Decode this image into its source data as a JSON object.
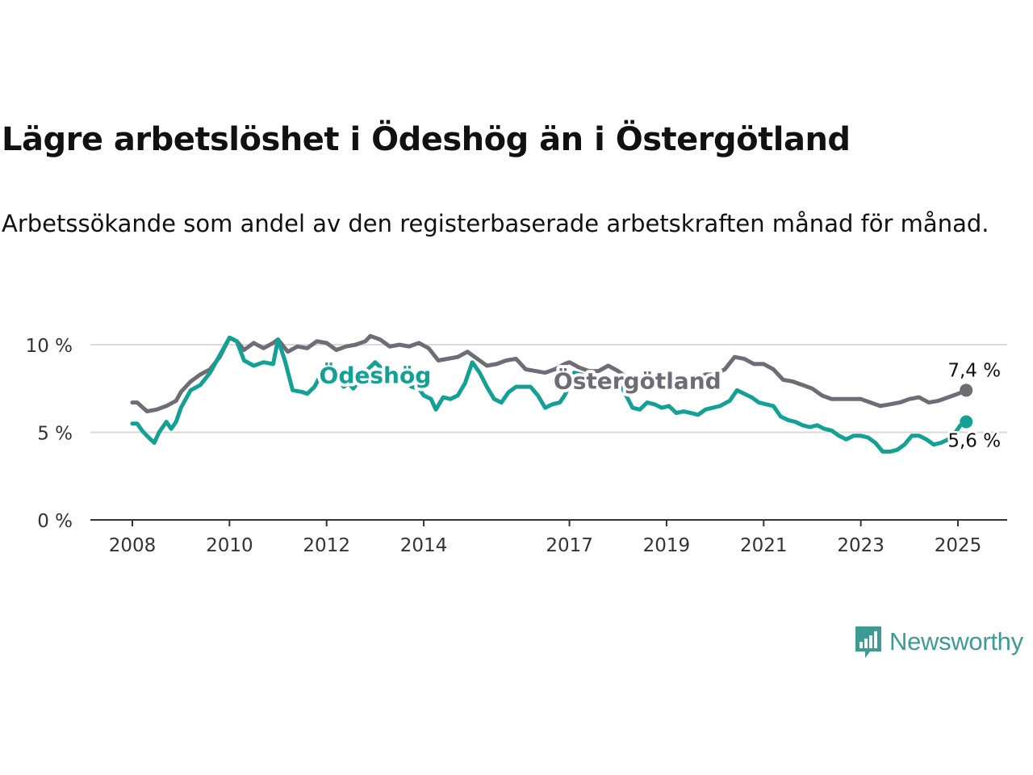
{
  "title": "Lägre arbetslöshet i Ödeshög än i Östergötland",
  "subtitle": "Arbetssökande som andel av den registerbaserade arbetskraften månad för månad.",
  "brand": {
    "name": "Newsworthy",
    "icon": "newsworthy-chart-icon",
    "color": "#3d9b93"
  },
  "chart_data": {
    "type": "line",
    "ylim": [
      0,
      10.5
    ],
    "yticks": [
      {
        "value": 0,
        "label": "0 %"
      },
      {
        "value": 5,
        "label": "5 %"
      },
      {
        "value": 10,
        "label": "10 %"
      }
    ],
    "xlim": [
      2008,
      2026
    ],
    "xticks": [
      {
        "value": 2008,
        "label": "2008"
      },
      {
        "value": 2010,
        "label": "2010"
      },
      {
        "value": 2012,
        "label": "2012"
      },
      {
        "value": 2014,
        "label": "2014"
      },
      {
        "value": 2017,
        "label": "2017"
      },
      {
        "value": 2019,
        "label": "2019"
      },
      {
        "value": 2021,
        "label": "2021"
      },
      {
        "value": 2023,
        "label": "2023"
      },
      {
        "value": 2025,
        "label": "2025"
      }
    ],
    "grid": true,
    "series": [
      {
        "name": "Östergötland",
        "color": "#6e6c74",
        "end_label": "7,4 %",
        "points": [
          [
            2008.0,
            6.7
          ],
          [
            2008.1,
            6.7
          ],
          [
            2008.3,
            6.2
          ],
          [
            2008.5,
            6.3
          ],
          [
            2008.7,
            6.5
          ],
          [
            2008.9,
            6.8
          ],
          [
            2009.0,
            7.3
          ],
          [
            2009.2,
            7.9
          ],
          [
            2009.4,
            8.3
          ],
          [
            2009.6,
            8.6
          ],
          [
            2009.8,
            9.3
          ],
          [
            2010.0,
            10.4
          ],
          [
            2010.15,
            10.2
          ],
          [
            2010.3,
            9.7
          ],
          [
            2010.5,
            10.1
          ],
          [
            2010.7,
            9.8
          ],
          [
            2010.9,
            10.1
          ],
          [
            2011.0,
            10.3
          ],
          [
            2011.2,
            9.6
          ],
          [
            2011.4,
            9.9
          ],
          [
            2011.6,
            9.8
          ],
          [
            2011.8,
            10.2
          ],
          [
            2012.0,
            10.1
          ],
          [
            2012.2,
            9.7
          ],
          [
            2012.4,
            9.9
          ],
          [
            2012.6,
            10.0
          ],
          [
            2012.8,
            10.2
          ],
          [
            2012.9,
            10.5
          ],
          [
            2013.1,
            10.3
          ],
          [
            2013.3,
            9.9
          ],
          [
            2013.5,
            10.0
          ],
          [
            2013.7,
            9.9
          ],
          [
            2013.9,
            10.1
          ],
          [
            2014.1,
            9.8
          ],
          [
            2014.3,
            9.1
          ],
          [
            2014.5,
            9.2
          ],
          [
            2014.7,
            9.3
          ],
          [
            2014.9,
            9.6
          ],
          [
            2015.1,
            9.2
          ],
          [
            2015.3,
            8.8
          ],
          [
            2015.5,
            8.9
          ],
          [
            2015.7,
            9.1
          ],
          [
            2015.9,
            9.2
          ],
          [
            2016.1,
            8.6
          ],
          [
            2016.3,
            8.5
          ],
          [
            2016.5,
            8.4
          ],
          [
            2016.7,
            8.6
          ],
          [
            2016.9,
            8.9
          ],
          [
            2017.0,
            9.0
          ],
          [
            2017.2,
            8.7
          ],
          [
            2017.4,
            8.5
          ],
          [
            2017.6,
            8.5
          ],
          [
            2017.8,
            8.8
          ],
          [
            2018.0,
            8.5
          ],
          [
            2018.2,
            8.1
          ],
          [
            2018.4,
            8.0
          ],
          [
            2018.6,
            7.9
          ],
          [
            2018.8,
            8.0
          ],
          [
            2019.0,
            8.2
          ],
          [
            2019.2,
            8.2
          ],
          [
            2019.4,
            8.0
          ],
          [
            2019.6,
            8.0
          ],
          [
            2019.8,
            8.3
          ],
          [
            2020.0,
            8.3
          ],
          [
            2020.2,
            8.6
          ],
          [
            2020.4,
            9.3
          ],
          [
            2020.6,
            9.2
          ],
          [
            2020.8,
            8.9
          ],
          [
            2021.0,
            8.9
          ],
          [
            2021.2,
            8.6
          ],
          [
            2021.4,
            8.0
          ],
          [
            2021.6,
            7.9
          ],
          [
            2021.8,
            7.7
          ],
          [
            2022.0,
            7.5
          ],
          [
            2022.2,
            7.1
          ],
          [
            2022.4,
            6.9
          ],
          [
            2022.6,
            6.9
          ],
          [
            2022.8,
            6.9
          ],
          [
            2023.0,
            6.9
          ],
          [
            2023.2,
            6.7
          ],
          [
            2023.4,
            6.5
          ],
          [
            2023.6,
            6.6
          ],
          [
            2023.8,
            6.7
          ],
          [
            2024.0,
            6.9
          ],
          [
            2024.2,
            7.0
          ],
          [
            2024.4,
            6.7
          ],
          [
            2024.6,
            6.8
          ],
          [
            2024.8,
            7.0
          ],
          [
            2025.0,
            7.2
          ],
          [
            2025.17,
            7.4
          ]
        ]
      },
      {
        "name": "Ödeshög",
        "color": "#13a195",
        "end_label": "5,6 %",
        "points": [
          [
            2008.0,
            5.5
          ],
          [
            2008.1,
            5.5
          ],
          [
            2008.2,
            5.1
          ],
          [
            2008.3,
            4.8
          ],
          [
            2008.45,
            4.4
          ],
          [
            2008.55,
            5.0
          ],
          [
            2008.7,
            5.6
          ],
          [
            2008.8,
            5.2
          ],
          [
            2008.9,
            5.6
          ],
          [
            2009.0,
            6.4
          ],
          [
            2009.2,
            7.4
          ],
          [
            2009.4,
            7.7
          ],
          [
            2009.6,
            8.4
          ],
          [
            2009.8,
            9.4
          ],
          [
            2010.0,
            10.4
          ],
          [
            2010.15,
            10.2
          ],
          [
            2010.3,
            9.1
          ],
          [
            2010.5,
            8.8
          ],
          [
            2010.7,
            9.0
          ],
          [
            2010.9,
            8.9
          ],
          [
            2011.0,
            10.3
          ],
          [
            2011.15,
            9.0
          ],
          [
            2011.3,
            7.4
          ],
          [
            2011.5,
            7.3
          ],
          [
            2011.6,
            7.2
          ],
          [
            2011.75,
            7.6
          ],
          [
            2011.9,
            8.4
          ],
          [
            2012.05,
            8.8
          ],
          [
            2012.2,
            8.2
          ],
          [
            2012.35,
            7.6
          ],
          [
            2012.45,
            7.8
          ],
          [
            2012.55,
            7.5
          ],
          [
            2012.7,
            8.1
          ],
          [
            2012.85,
            8.6
          ],
          [
            2013.0,
            9.0
          ],
          [
            2013.15,
            8.6
          ],
          [
            2013.3,
            8.3
          ],
          [
            2013.45,
            8.2
          ],
          [
            2013.6,
            8.0
          ],
          [
            2013.75,
            7.6
          ],
          [
            2013.9,
            7.5
          ],
          [
            2014.0,
            7.1
          ],
          [
            2014.15,
            6.9
          ],
          [
            2014.25,
            6.3
          ],
          [
            2014.4,
            7.0
          ],
          [
            2014.55,
            6.9
          ],
          [
            2014.7,
            7.1
          ],
          [
            2014.85,
            7.8
          ],
          [
            2015.0,
            9.0
          ],
          [
            2015.15,
            8.4
          ],
          [
            2015.3,
            7.6
          ],
          [
            2015.45,
            6.9
          ],
          [
            2015.6,
            6.7
          ],
          [
            2015.75,
            7.3
          ],
          [
            2015.9,
            7.6
          ],
          [
            2016.05,
            7.6
          ],
          [
            2016.2,
            7.6
          ],
          [
            2016.35,
            7.1
          ],
          [
            2016.5,
            6.4
          ],
          [
            2016.65,
            6.6
          ],
          [
            2016.8,
            6.7
          ],
          [
            2016.9,
            7.1
          ],
          [
            2017.0,
            7.7
          ],
          [
            2017.1,
            8.4
          ],
          [
            2017.25,
            8.3
          ],
          [
            2017.4,
            8.1
          ],
          [
            2017.55,
            7.8
          ],
          [
            2017.7,
            8.2
          ],
          [
            2017.85,
            7.7
          ],
          [
            2018.0,
            8.0
          ],
          [
            2018.15,
            7.2
          ],
          [
            2018.3,
            6.4
          ],
          [
            2018.45,
            6.3
          ],
          [
            2018.6,
            6.7
          ],
          [
            2018.75,
            6.6
          ],
          [
            2018.9,
            6.4
          ],
          [
            2019.05,
            6.5
          ],
          [
            2019.2,
            6.1
          ],
          [
            2019.35,
            6.2
          ],
          [
            2019.5,
            6.1
          ],
          [
            2019.65,
            6.0
          ],
          [
            2019.8,
            6.3
          ],
          [
            2019.95,
            6.4
          ],
          [
            2020.1,
            6.5
          ],
          [
            2020.3,
            6.8
          ],
          [
            2020.45,
            7.4
          ],
          [
            2020.6,
            7.2
          ],
          [
            2020.75,
            7.0
          ],
          [
            2020.9,
            6.7
          ],
          [
            2021.05,
            6.6
          ],
          [
            2021.2,
            6.5
          ],
          [
            2021.35,
            5.9
          ],
          [
            2021.5,
            5.7
          ],
          [
            2021.65,
            5.6
          ],
          [
            2021.8,
            5.4
          ],
          [
            2021.95,
            5.3
          ],
          [
            2022.1,
            5.4
          ],
          [
            2022.25,
            5.2
          ],
          [
            2022.4,
            5.1
          ],
          [
            2022.55,
            4.8
          ],
          [
            2022.7,
            4.6
          ],
          [
            2022.85,
            4.8
          ],
          [
            2023.0,
            4.8
          ],
          [
            2023.15,
            4.7
          ],
          [
            2023.3,
            4.4
          ],
          [
            2023.45,
            3.9
          ],
          [
            2023.6,
            3.9
          ],
          [
            2023.75,
            4.0
          ],
          [
            2023.9,
            4.3
          ],
          [
            2024.05,
            4.8
          ],
          [
            2024.2,
            4.8
          ],
          [
            2024.35,
            4.6
          ],
          [
            2024.5,
            4.3
          ],
          [
            2024.65,
            4.4
          ],
          [
            2024.8,
            4.6
          ],
          [
            2024.95,
            5.0
          ],
          [
            2025.05,
            5.4
          ],
          [
            2025.17,
            5.6
          ]
        ]
      }
    ],
    "annotations": [
      {
        "text": "Ödeshög",
        "series": "Ödeshög",
        "x": 2013.0,
        "y": 7.8
      },
      {
        "text": "Östergötland",
        "series": "Östergötland",
        "x": 2018.4,
        "y": 7.5
      }
    ]
  }
}
